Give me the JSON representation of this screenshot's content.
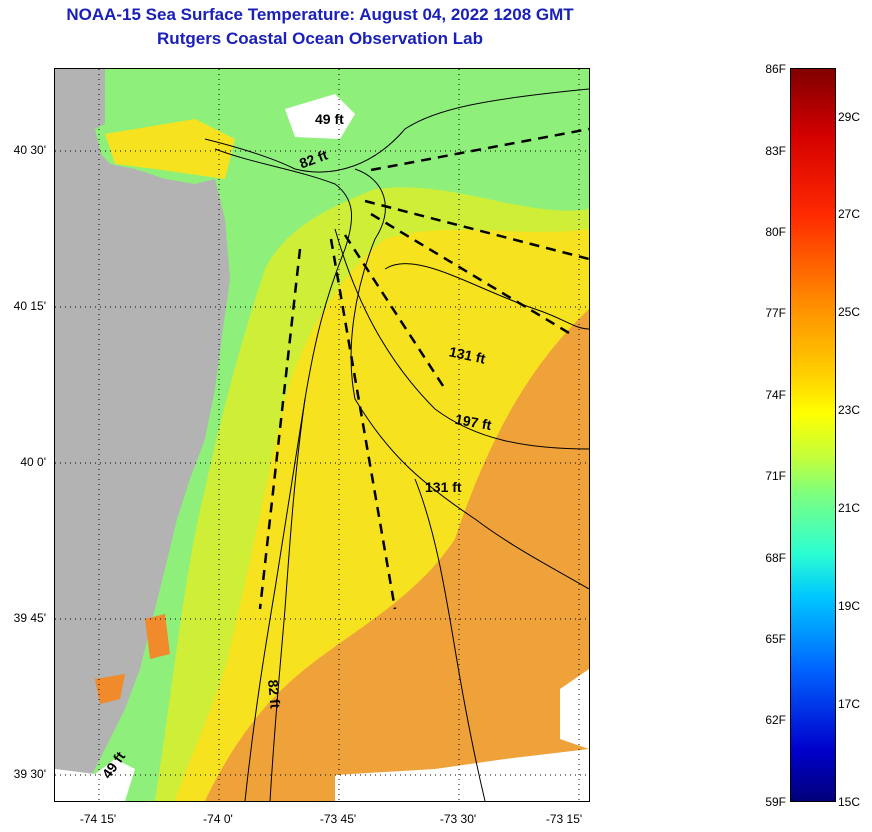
{
  "title": "NOAA-15 Sea Surface Temperature:  August 04, 2022 1208 GMT",
  "subtitle": "Rutgers Coastal Ocean Observation Lab",
  "map": {
    "lat_labels": [
      "40 30'",
      "40 15'",
      "40 0'",
      "39 45'",
      "39 30'"
    ],
    "lon_labels": [
      "-74 15'",
      "-74 0'",
      "-73 45'",
      "-73 30'",
      "-73 15'"
    ],
    "depth_labels": [
      "49 ft",
      "82 ft",
      "131 ft",
      "197 ft",
      "131 ft",
      "82 ft",
      "49 ft"
    ],
    "colors": {
      "land": "#b3b3b3",
      "nodata": "#ffffff",
      "warm": "#f0a23a",
      "yellow": "#f5f520",
      "green": "#8ef07a",
      "contour": "#000000"
    }
  },
  "colorbar": {
    "fahrenheit": [
      "86F",
      "83F",
      "80F",
      "77F",
      "74F",
      "71F",
      "68F",
      "65F",
      "62F",
      "59F"
    ],
    "celsius": [
      "29C",
      "27C",
      "25C",
      "23C",
      "21C",
      "19C",
      "17C",
      "15C"
    ]
  }
}
